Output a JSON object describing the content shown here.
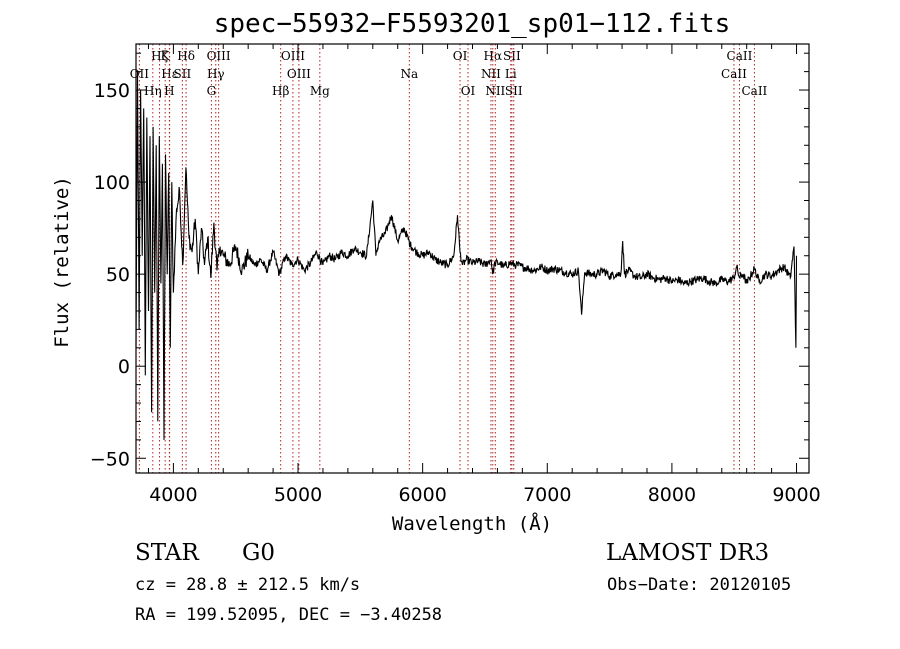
{
  "chart_data": {
    "type": "line",
    "title": "spec−55932−F5593201_sp01−112.fits",
    "xlabel": "Wavelength (Å)",
    "ylabel": "Flux (relative)",
    "xlim": [
      3700,
      9100
    ],
    "ylim": [
      -58,
      175
    ],
    "x_ticks": [
      4000,
      5000,
      6000,
      7000,
      8000,
      9000
    ],
    "y_ticks": [
      -50,
      0,
      50,
      100,
      150
    ],
    "y_tick_labels": [
      "−50",
      "0",
      "50",
      "100",
      "150"
    ],
    "series": [
      {
        "name": "spectrum",
        "x": [
          3700,
          3712,
          3725,
          3737,
          3750,
          3762,
          3775,
          3787,
          3800,
          3812,
          3825,
          3837,
          3850,
          3862,
          3875,
          3887,
          3900,
          3912,
          3925,
          3937,
          3950,
          3962,
          3975,
          3987,
          4000,
          4025,
          4050,
          4075,
          4100,
          4125,
          4150,
          4175,
          4200,
          4225,
          4250,
          4275,
          4300,
          4325,
          4350,
          4375,
          4400,
          4450,
          4500,
          4550,
          4600,
          4650,
          4700,
          4750,
          4800,
          4850,
          4900,
          4950,
          5000,
          5050,
          5100,
          5150,
          5200,
          5250,
          5300,
          5350,
          5400,
          5450,
          5500,
          5550,
          5600,
          5625,
          5650,
          5700,
          5750,
          5800,
          5850,
          5900,
          5950,
          6000,
          6050,
          6100,
          6150,
          6200,
          6250,
          6280,
          6300,
          6320,
          6350,
          6400,
          6450,
          6500,
          6550,
          6562,
          6580,
          6620,
          6650,
          6700,
          6750,
          6800,
          6850,
          6900,
          6950,
          7000,
          7050,
          7100,
          7150,
          7200,
          7250,
          7275,
          7300,
          7350,
          7400,
          7450,
          7500,
          7550,
          7590,
          7605,
          7620,
          7650,
          7700,
          7750,
          7800,
          7850,
          7900,
          7950,
          8000,
          8050,
          8100,
          8150,
          8200,
          8250,
          8300,
          8350,
          8400,
          8450,
          8498,
          8520,
          8542,
          8570,
          8600,
          8662,
          8700,
          8750,
          8800,
          8850,
          8900,
          8950,
          8980,
          8995,
          9000
        ],
        "values": [
          10,
          160,
          20,
          150,
          60,
          140,
          -5,
          135,
          30,
          125,
          -25,
          130,
          40,
          120,
          -30,
          125,
          45,
          110,
          -40,
          115,
          50,
          105,
          10,
          100,
          40,
          85,
          95,
          55,
          108,
          70,
          62,
          80,
          50,
          75,
          55,
          70,
          48,
          78,
          52,
          65,
          60,
          55,
          65,
          52,
          60,
          55,
          58,
          52,
          62,
          50,
          60,
          55,
          58,
          52,
          56,
          62,
          55,
          60,
          58,
          62,
          60,
          64,
          62,
          60,
          90,
          60,
          68,
          72,
          82,
          68,
          75,
          66,
          62,
          60,
          62,
          58,
          56,
          55,
          60,
          82,
          62,
          55,
          58,
          56,
          57,
          55,
          58,
          50,
          56,
          56,
          54,
          56,
          55,
          54,
          53,
          52,
          54,
          52,
          53,
          52,
          51,
          50,
          52,
          28,
          51,
          50,
          50,
          52,
          49,
          50,
          50,
          68,
          50,
          52,
          49,
          48,
          50,
          48,
          47,
          48,
          46,
          47,
          45,
          46,
          47,
          48,
          46,
          45,
          47,
          46,
          48,
          54,
          48,
          50,
          45,
          53,
          46,
          50,
          49,
          52,
          54,
          48,
          65,
          10,
          60
        ]
      }
    ],
    "spectral_lines": [
      {
        "label": "Hζ",
        "x": 3889,
        "row": 0
      },
      {
        "label": "K",
        "x": 3934,
        "row": 0
      },
      {
        "label": "Hδ",
        "x": 4102,
        "row": 0
      },
      {
        "label": "OIII",
        "x": 4363,
        "row": 0
      },
      {
        "label": "OIII",
        "x": 4959,
        "row": 0
      },
      {
        "label": "OI",
        "x": 6300,
        "row": 0
      },
      {
        "label": "Hα",
        "x": 6563,
        "row": 0
      },
      {
        "label": "SII",
        "x": 6716,
        "row": 0
      },
      {
        "label": "CaII",
        "x": 8542,
        "row": 0
      },
      {
        "label": "OII",
        "x": 3727,
        "row": 1
      },
      {
        "label": "Hε",
        "x": 3970,
        "row": 1
      },
      {
        "label": "SII",
        "x": 4072,
        "row": 1
      },
      {
        "label": "Hγ",
        "x": 4340,
        "row": 1
      },
      {
        "label": "OIII",
        "x": 5007,
        "row": 1
      },
      {
        "label": "Na",
        "x": 5893,
        "row": 1
      },
      {
        "label": "NII",
        "x": 6548,
        "row": 1
      },
      {
        "label": "Li",
        "x": 6707,
        "row": 1
      },
      {
        "label": "CaII",
        "x": 8498,
        "row": 1
      },
      {
        "label": "Hη",
        "x": 3835,
        "row": 2
      },
      {
        "label": "H",
        "x": 3968,
        "row": 2
      },
      {
        "label": "G",
        "x": 4305,
        "row": 2
      },
      {
        "label": "Hβ",
        "x": 4861,
        "row": 2
      },
      {
        "label": "Mg",
        "x": 5175,
        "row": 2
      },
      {
        "label": "OI",
        "x": 6364,
        "row": 2
      },
      {
        "label": "NII",
        "x": 6583,
        "row": 2
      },
      {
        "label": "SII",
        "x": 6731,
        "row": 2
      },
      {
        "label": "CaII",
        "x": 8662,
        "row": 2
      }
    ]
  },
  "info": {
    "object_type": "STAR",
    "subclass": "G0",
    "survey": "LAMOST DR3",
    "cz": "cz = 28.8 ± 212.5 km/s",
    "obs_date": "Obs−Date: 20120105",
    "coords": "RA = 199.52095, DEC =  −3.40258"
  }
}
